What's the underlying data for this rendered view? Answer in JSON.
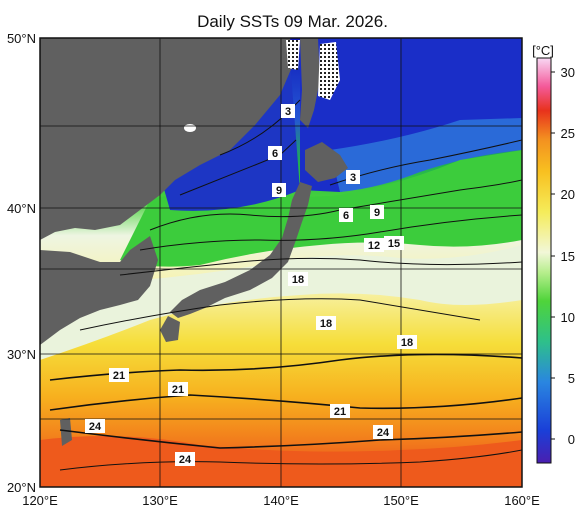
{
  "title": "Daily SSTs 09 Mar. 2026.",
  "unit_label": "[°C]",
  "lat_labels": [
    "50°N",
    "40°N",
    "30°N",
    "20°N"
  ],
  "lon_labels": [
    "120°E",
    "130°E",
    "140°E",
    "150°E",
    "160°E"
  ],
  "colorbar_ticks": [
    "30",
    "25",
    "20",
    "15",
    "10",
    "5",
    "0"
  ],
  "isotherm_labels": [
    "3",
    "6",
    "9",
    "3",
    "6",
    "9",
    "12",
    "15",
    "18",
    "18",
    "18",
    "21",
    "21",
    "21",
    "24",
    "24",
    "24"
  ],
  "colors": {
    "land": "#606060",
    "sea_ice": "#ffffff"
  }
}
